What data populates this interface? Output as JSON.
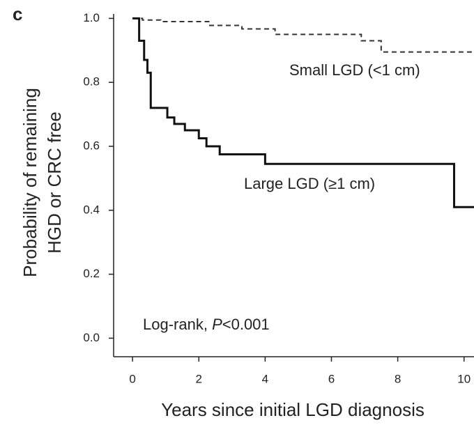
{
  "chart_data": {
    "type": "step",
    "panel_label": "c",
    "ylabel": [
      "Probability of remaining",
      "HGD or CRC free"
    ],
    "xlabel": "Years since initial LGD diagnosis",
    "xlim": [
      -0.57,
      10.3
    ],
    "ylim": [
      -0.058,
      1.027
    ],
    "xticks": [
      0,
      2,
      4,
      6,
      8,
      10
    ],
    "yticks": [
      {
        "value": 0,
        "label": "0.0"
      },
      {
        "value": 0.2,
        "label": "0.2"
      },
      {
        "value": 0.4,
        "label": "0.4"
      },
      {
        "value": 0.6,
        "label": "0.6"
      },
      {
        "value": 0.8,
        "label": "0.8"
      },
      {
        "value": 1,
        "label": "1.0"
      }
    ],
    "series": [
      {
        "name": "Small LGD (<1 cm)",
        "color": "#333333",
        "dashed": true,
        "x": [
          0,
          0.3,
          0.85,
          2.3,
          3.3,
          4.3,
          6.9,
          7.5
        ],
        "values": [
          1.0,
          0.995,
          0.99,
          0.978,
          0.967,
          0.95,
          0.93,
          0.895
        ]
      },
      {
        "name": "Large LGD (≥1 cm)",
        "color": "#111111",
        "dashed": false,
        "x": [
          0,
          0.2,
          0.35,
          0.45,
          0.55,
          1.05,
          1.26,
          1.58,
          2.0,
          2.23,
          2.63,
          4.0,
          9.7
        ],
        "values": [
          1.0,
          0.93,
          0.87,
          0.83,
          0.72,
          0.69,
          0.67,
          0.65,
          0.625,
          0.6,
          0.575,
          0.545,
          0.41
        ]
      }
    ],
    "annotation": [
      "Log-rank, ",
      "P",
      "<0.001"
    ]
  }
}
